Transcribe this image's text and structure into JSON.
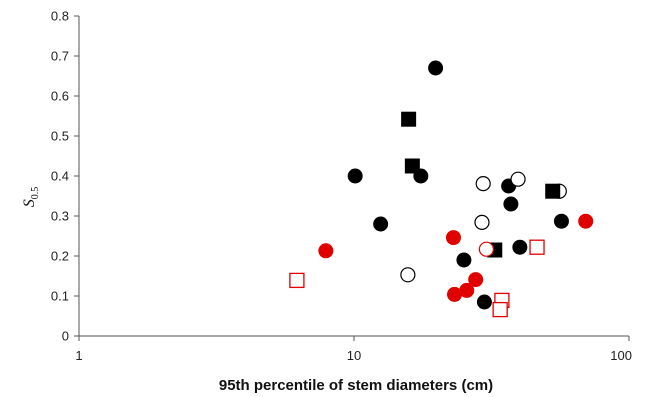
{
  "chart_data": {
    "type": "scatter",
    "xlabel": "95th percentile of stem diameters (cm)",
    "ylabel_main": "S",
    "ylabel_sub": "0.5",
    "xscale": "log",
    "xlim": [
      1,
      100
    ],
    "ylim": [
      0,
      0.8
    ],
    "xticks": [
      1,
      10,
      100
    ],
    "xtick_labels": [
      "1",
      "10",
      "100"
    ],
    "yticks": [
      0,
      0.1,
      0.2,
      0.3,
      0.4,
      0.5,
      0.6,
      0.7,
      0.8
    ],
    "ytick_labels": [
      "0",
      "0.1",
      "0.2",
      "0.3",
      "0.4",
      "0.5",
      "0.6",
      "0.7",
      "0.8"
    ],
    "grid": false,
    "colors": {
      "black": "#000000",
      "red": "#e00000"
    },
    "series": [
      {
        "marker": "circle-filled",
        "color": "#000000",
        "points": [
          [
            10.1,
            0.4
          ],
          [
            12.5,
            0.28
          ],
          [
            17.5,
            0.4
          ],
          [
            19.8,
            0.67
          ],
          [
            25.1,
            0.19
          ],
          [
            29.8,
            0.085
          ],
          [
            36.5,
            0.375
          ],
          [
            37.2,
            0.33
          ],
          [
            40.1,
            0.222
          ],
          [
            56.8,
            0.287
          ]
        ]
      },
      {
        "marker": "circle-open",
        "color": "#000000",
        "points": [
          [
            15.7,
            0.153
          ],
          [
            29.5,
            0.381
          ],
          [
            29.2,
            0.284
          ],
          [
            39.5,
            0.392
          ],
          [
            55.8,
            0.362
          ]
        ]
      },
      {
        "marker": "square-filled",
        "color": "#000000",
        "points": [
          [
            15.8,
            0.542
          ],
          [
            16.3,
            0.425
          ],
          [
            32.5,
            0.215
          ],
          [
            52.8,
            0.362
          ]
        ]
      },
      {
        "marker": "circle-filled",
        "color": "#e00000",
        "points": [
          [
            7.9,
            0.213
          ],
          [
            23.0,
            0.246
          ],
          [
            23.2,
            0.104
          ],
          [
            25.7,
            0.114
          ],
          [
            27.7,
            0.141
          ],
          [
            69.6,
            0.287
          ]
        ]
      },
      {
        "marker": "circle-open",
        "color": "#e00000",
        "points": [
          [
            30.3,
            0.217
          ]
        ]
      },
      {
        "marker": "square-open",
        "color": "#e00000",
        "points": [
          [
            6.2,
            0.139
          ],
          [
            34.5,
            0.089
          ],
          [
            34.0,
            0.066
          ],
          [
            46.3,
            0.222
          ]
        ]
      }
    ]
  }
}
